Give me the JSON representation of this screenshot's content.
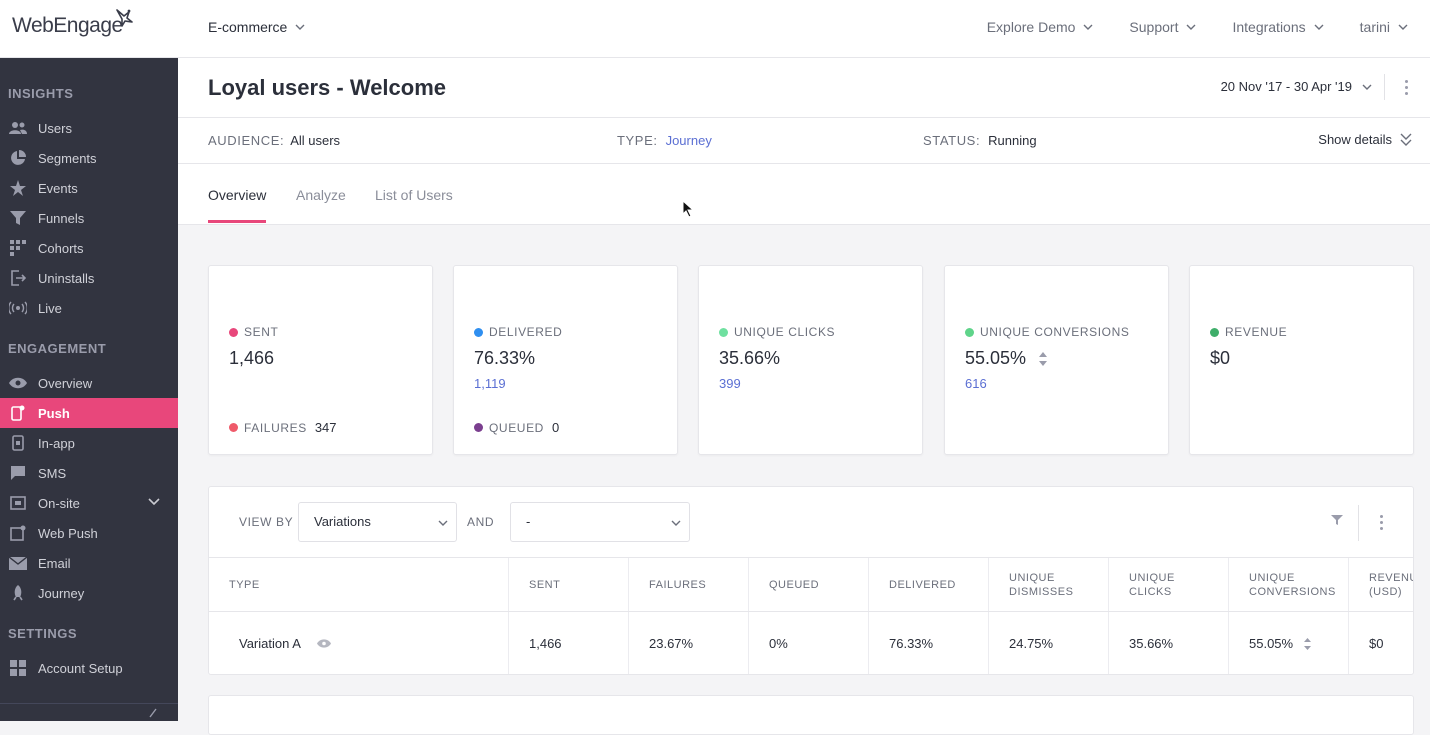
{
  "app": {
    "logo_text": "WebEngage",
    "project": "E-commerce"
  },
  "topnav": {
    "items": [
      "Explore Demo",
      "Support",
      "Integrations",
      "tarini"
    ]
  },
  "sidebar": {
    "sections": {
      "insights": "INSIGHTS",
      "engagement": "ENGAGEMENT",
      "settings": "SETTINGS"
    },
    "insights_items": [
      "Users",
      "Segments",
      "Events",
      "Funnels",
      "Cohorts",
      "Uninstalls",
      "Live"
    ],
    "engagement_items": [
      "Overview",
      "Push",
      "In-app",
      "SMS",
      "On-site",
      "Web Push",
      "Email",
      "Journey"
    ],
    "settings_items": [
      "Account Setup"
    ],
    "active_item": "Push"
  },
  "header": {
    "title": "Loyal users - Welcome",
    "date_range": "20 Nov '17 - 30 Apr '19"
  },
  "meta": {
    "audience_label": "AUDIENCE:",
    "audience_value": "All users",
    "type_label": "TYPE:",
    "type_value": "Journey",
    "status_label": "STATUS:",
    "status_value": "Running",
    "show_details": "Show details"
  },
  "tabs": [
    "Overview",
    "Analyze",
    "List of Users"
  ],
  "cards": {
    "sent": {
      "label": "SENT",
      "value": "1,466",
      "foot_label": "FAILURES",
      "foot_value": "347"
    },
    "delivered": {
      "label": "DELIVERED",
      "value": "76.33%",
      "sub": "1,119",
      "foot_label": "QUEUED",
      "foot_value": "0"
    },
    "unique_clicks": {
      "label": "UNIQUE CLICKS",
      "value": "35.66%",
      "sub": "399"
    },
    "unique_conversions": {
      "label": "UNIQUE CONVERSIONS",
      "value": "55.05%",
      "sub": "616"
    },
    "revenue": {
      "label": "REVENUE",
      "value": "$0"
    }
  },
  "colors": {
    "accent": "#e8477b",
    "sent": "#e8477b",
    "failures": "#ef5a6a",
    "delivered": "#2f8ff0",
    "queued": "#7b3f8f",
    "unique_clicks": "#6fe0a0",
    "unique_conversions": "#5fd48a",
    "revenue": "#3fae6a",
    "link": "#5b6fd3"
  },
  "table": {
    "view_by_label": "VIEW BY",
    "view_by_value": "Variations",
    "and_label": "AND",
    "and_value": "-",
    "headers": [
      "TYPE",
      "SENT",
      "FAILURES",
      "QUEUED",
      "DELIVERED",
      "UNIQUE DISMISSES",
      "UNIQUE CLICKS",
      "UNIQUE CONVERSIONS",
      "REVENUE (USD)"
    ],
    "header_lines": [
      [
        "TYPE"
      ],
      [
        "SENT"
      ],
      [
        "FAILURES"
      ],
      [
        "QUEUED"
      ],
      [
        "DELIVERED"
      ],
      [
        "UNIQUE",
        "DISMISSES"
      ],
      [
        "UNIQUE",
        "CLICKS"
      ],
      [
        "UNIQUE",
        "CONVERSIONS"
      ],
      [
        "REVENUE",
        "(USD)"
      ]
    ],
    "rows": [
      [
        "Variation A",
        "1,466",
        "23.67%",
        "0%",
        "76.33%",
        "24.75%",
        "35.66%",
        "55.05%",
        "$0"
      ]
    ]
  }
}
